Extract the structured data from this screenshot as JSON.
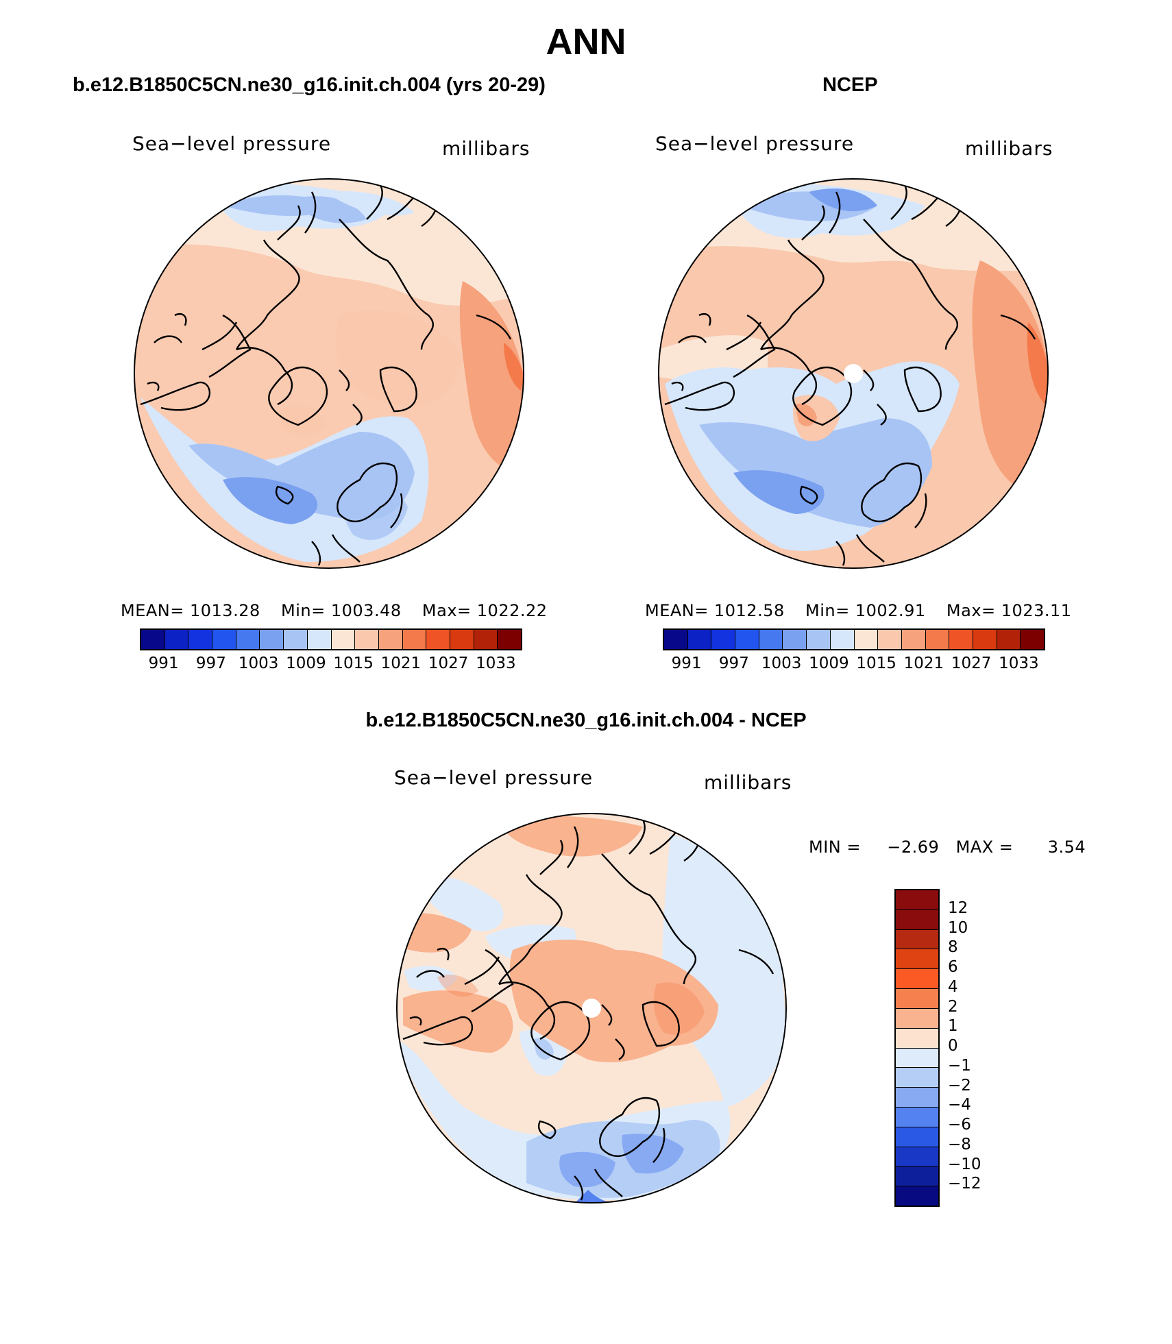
{
  "title": "ANN",
  "colors": {
    "abs_palette": [
      "#08088a",
      "#0c22c4",
      "#1433e0",
      "#2255f0",
      "#4678f0",
      "#7aa0f0",
      "#a8c4f5",
      "#d6e6fb",
      "#fbe6d6",
      "#f9c8ad",
      "#f6a27c",
      "#f47a4c",
      "#ef5426",
      "#d93a10",
      "#b22208",
      "#7d0000"
    ],
    "diff_palette_top_to_bottom": [
      "#8a0c0c",
      "#b52a10",
      "#e04312",
      "#fb5a24",
      "#f6814e",
      "#f9b38f",
      "#fde3cf",
      "#deebfa",
      "#b4cef6",
      "#88aaf3",
      "#5482f0",
      "#2a59e6",
      "#1a38c6",
      "#0e1f9c",
      "#070a80"
    ]
  },
  "panels": {
    "model": {
      "title": "b.e12.B1850C5CN.ne30_g16.init.ch.004 (yrs 20-29)",
      "variable_label": "Sea−level pressure",
      "units_label": "millibars",
      "stats": {
        "mean_label": "MEAN=",
        "mean": "1013.28",
        "min_label": "Min=",
        "min": "1003.48",
        "max_label": "Max=",
        "max": "1022.22"
      },
      "colorbar_ticks": [
        "991",
        "997",
        "1003",
        "1009",
        "1015",
        "1021",
        "1027",
        "1033"
      ]
    },
    "obs": {
      "title": "NCEP",
      "variable_label": "Sea−level pressure",
      "units_label": "millibars",
      "stats": {
        "mean_label": "MEAN=",
        "mean": "1012.58",
        "min_label": "Min=",
        "min": "1002.91",
        "max_label": "Max=",
        "max": "1023.11"
      },
      "colorbar_ticks": [
        "991",
        "997",
        "1003",
        "1009",
        "1015",
        "1021",
        "1027",
        "1033"
      ]
    },
    "diff": {
      "title": "b.e12.B1850C5CN.ne30_g16.init.ch.004 - NCEP",
      "variable_label": "Sea−level pressure",
      "units_label": "millibars",
      "stats": {
        "min_label": "MIN =",
        "min": "−2.69",
        "max_label": "MAX =",
        "max": "3.54"
      },
      "colorbar_ticks": [
        "12",
        "10",
        "8",
        "6",
        "4",
        "2",
        "1",
        "0",
        "−1",
        "−2",
        "−4",
        "−6",
        "−8",
        "−10",
        "−12"
      ]
    }
  }
}
